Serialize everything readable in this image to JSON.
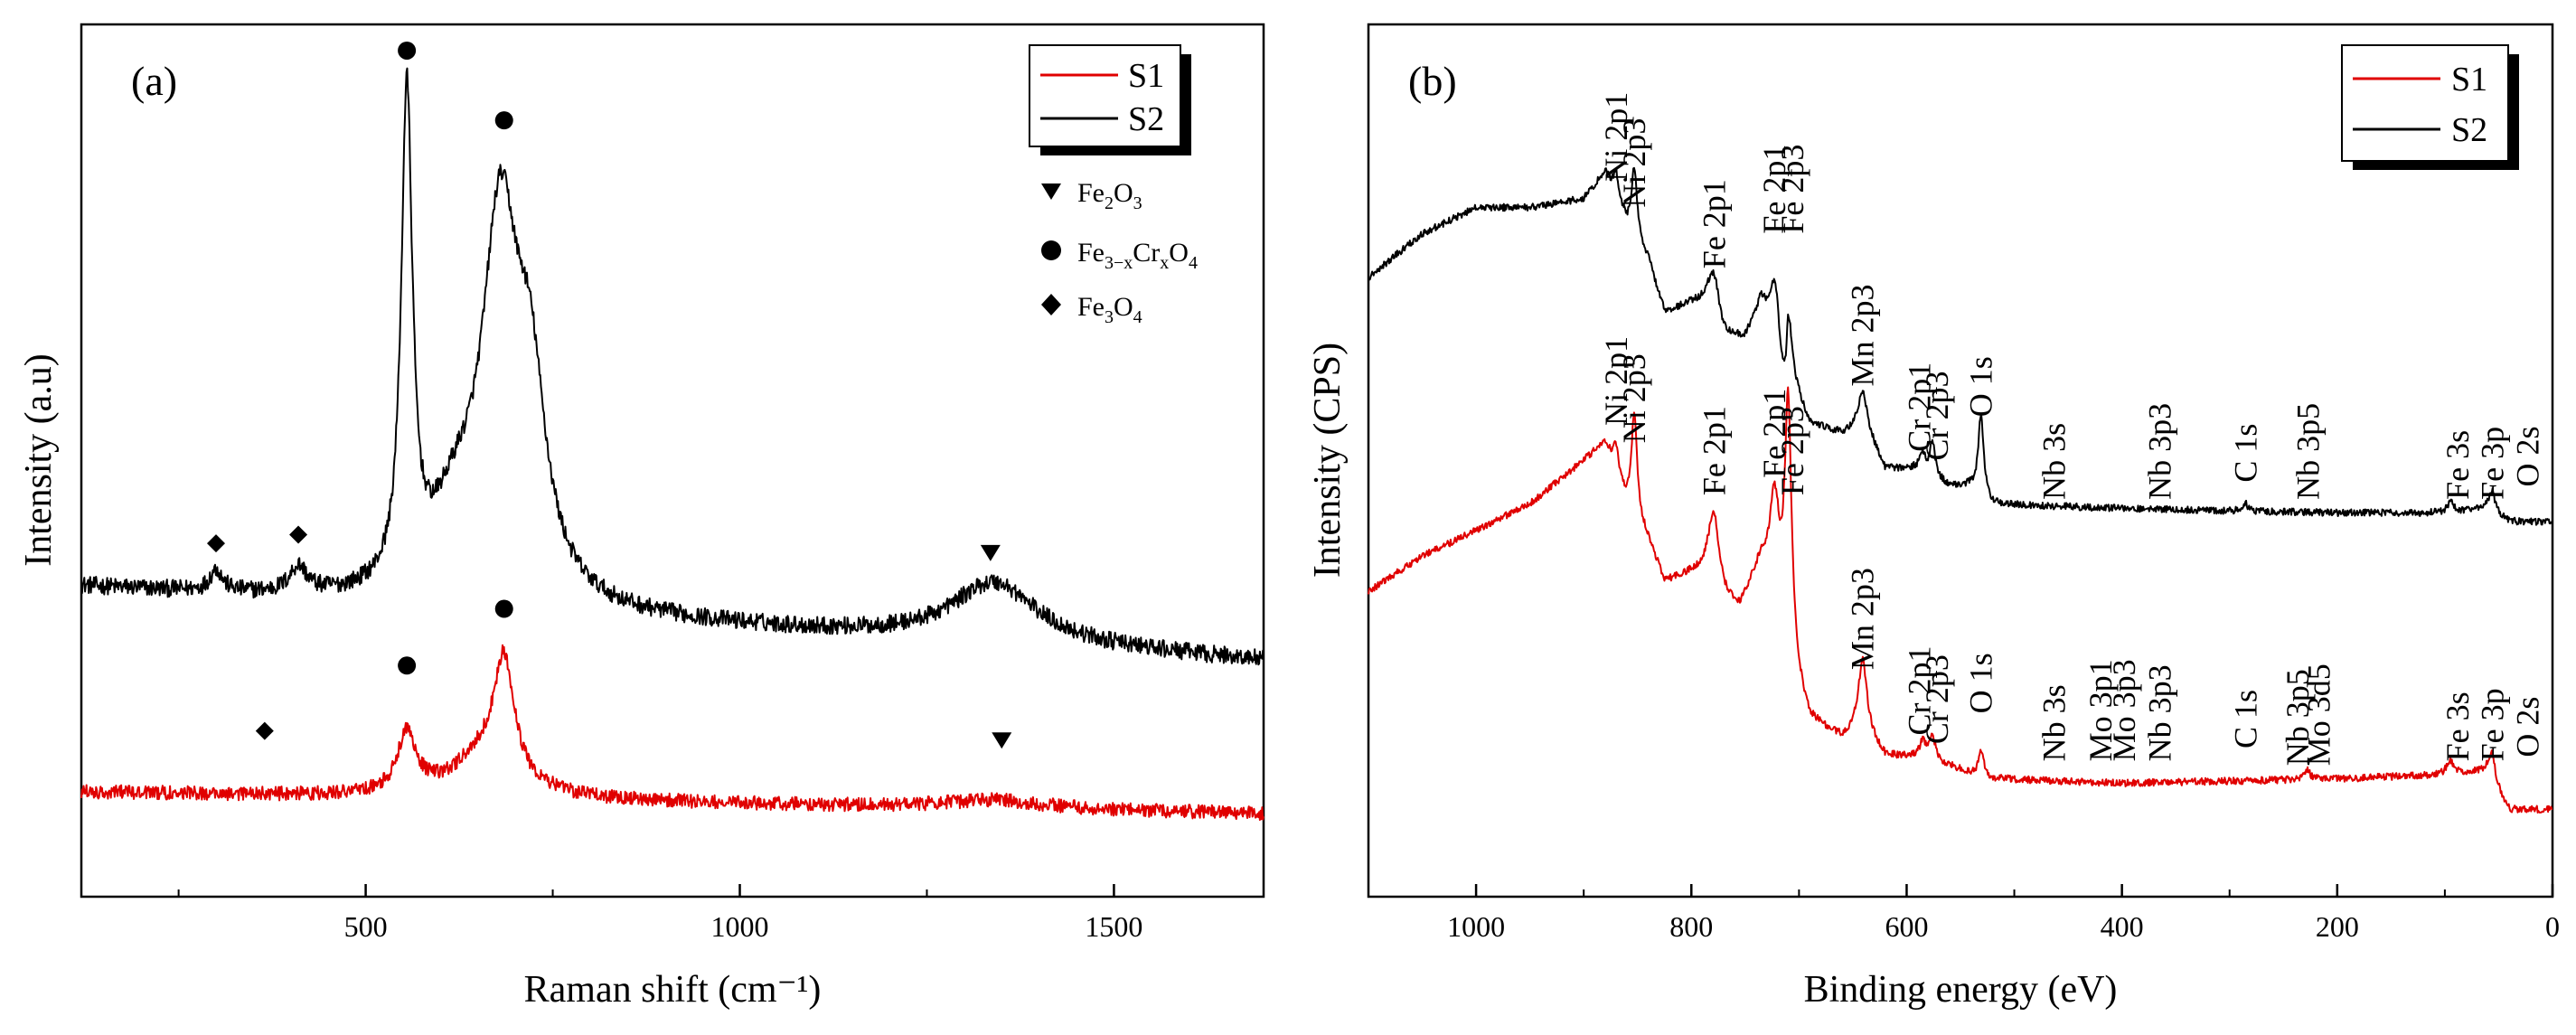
{
  "chart_data": [
    {
      "type": "line",
      "panel_label": "(a)",
      "xlabel": "Raman shift (cm⁻¹)",
      "ylabel": "Intensity (a.u)",
      "xlim": [
        120,
        1700
      ],
      "ylim": [
        0,
        1
      ],
      "xticks": [
        500,
        1000,
        1500
      ],
      "yticks": [],
      "grid": false,
      "legend": {
        "position": "top-right",
        "entries": [
          {
            "name": "S1",
            "color": "#e00000"
          },
          {
            "name": "S2",
            "color": "#000000"
          }
        ]
      },
      "marker_legend": [
        {
          "symbol": "triangle-down",
          "main": "Fe",
          "sub1": "2",
          "mid": "O",
          "sub2": "3",
          "tail": ""
        },
        {
          "symbol": "circle",
          "main": "Fe",
          "sub1": "3−x",
          "mid": "Cr",
          "sub2": "x",
          "tail": "O",
          "sub3": "4"
        },
        {
          "symbol": "diamond",
          "main": "Fe",
          "sub1": "3",
          "mid": "O",
          "sub2": "4",
          "tail": ""
        }
      ],
      "series": [
        {
          "name": "S2",
          "color": "#000000",
          "baseline_start": 0.355,
          "baseline_end": 0.27,
          "noise": 0.01,
          "peaks": [
            {
              "x": 300,
              "amp": 0.025,
              "w": 10
            },
            {
              "x": 410,
              "amp": 0.03,
              "w": 14
            },
            {
              "x": 555,
              "amp": 0.56,
              "w": 9
            },
            {
              "x": 620,
              "amp": 0.08,
              "w": 40
            },
            {
              "x": 680,
              "amp": 0.42,
              "w": 30
            },
            {
              "x": 720,
              "amp": 0.2,
              "w": 25
            },
            {
              "x": 1340,
              "amp": 0.07,
              "w": 70
            }
          ]
        },
        {
          "name": "S1",
          "color": "#e00000",
          "baseline_start": 0.12,
          "baseline_end": 0.095,
          "noise": 0.008,
          "peaks": [
            {
              "x": 555,
              "amp": 0.07,
              "w": 15
            },
            {
              "x": 660,
              "amp": 0.05,
              "w": 50
            },
            {
              "x": 685,
              "amp": 0.13,
              "w": 16
            },
            {
              "x": 1340,
              "amp": 0.01,
              "w": 80
            }
          ]
        }
      ],
      "markers": [
        {
          "symbol": "circle",
          "x": 555,
          "y": 0.97
        },
        {
          "symbol": "circle",
          "x": 685,
          "y": 0.89
        },
        {
          "symbol": "diamond",
          "x": 300,
          "y": 0.405
        },
        {
          "symbol": "diamond",
          "x": 410,
          "y": 0.415
        },
        {
          "symbol": "triangle-down",
          "x": 1335,
          "y": 0.395
        },
        {
          "symbol": "circle",
          "x": 555,
          "y": 0.265
        },
        {
          "symbol": "circle",
          "x": 685,
          "y": 0.33
        },
        {
          "symbol": "diamond",
          "x": 365,
          "y": 0.19
        },
        {
          "symbol": "triangle-down",
          "x": 1350,
          "y": 0.18
        }
      ]
    },
    {
      "type": "line",
      "panel_label": "(b)",
      "xlabel": "Binding energy (eV)",
      "ylabel": "Intensity (CPS)",
      "xlim": [
        1100,
        0
      ],
      "ylim": [
        0,
        1
      ],
      "xticks": [
        1000,
        800,
        600,
        400,
        200,
        0
      ],
      "yticks": [],
      "grid": false,
      "legend": {
        "position": "top-right",
        "entries": [
          {
            "name": "S1",
            "color": "#e00000"
          },
          {
            "name": "S2",
            "color": "#000000"
          }
        ]
      },
      "series": [
        {
          "name": "S2",
          "color": "#000000",
          "profile": [
            [
              1100,
              0.71
            ],
            [
              1050,
              0.76
            ],
            [
              1000,
              0.79
            ],
            [
              950,
              0.79
            ],
            [
              900,
              0.8
            ],
            [
              880,
              0.83
            ],
            [
              860,
              0.77
            ],
            [
              840,
              0.73
            ],
            [
              825,
              0.67
            ],
            [
              800,
              0.68
            ],
            [
              785,
              0.68
            ],
            [
              770,
              0.64
            ],
            [
              750,
              0.64
            ],
            [
              735,
              0.68
            ],
            [
              720,
              0.62
            ],
            [
              712,
              0.5
            ],
            [
              705,
              0.56
            ],
            [
              700,
              0.56
            ],
            [
              690,
              0.54
            ],
            [
              660,
              0.53
            ],
            [
              640,
              0.54
            ],
            [
              620,
              0.49
            ],
            [
              590,
              0.49
            ],
            [
              560,
              0.47
            ],
            [
              540,
              0.47
            ],
            [
              520,
              0.45
            ],
            [
              400,
              0.445
            ],
            [
              200,
              0.44
            ],
            [
              100,
              0.44
            ],
            [
              60,
              0.445
            ],
            [
              40,
              0.43
            ],
            [
              20,
              0.43
            ],
            [
              0,
              0.43
            ]
          ],
          "noise": 0.004,
          "peaks": [
            {
              "x": 870,
              "amp": 0.03,
              "w": 3
            },
            {
              "x": 853,
              "amp": 0.08,
              "w": 3
            },
            {
              "x": 779,
              "amp": 0.05,
              "w": 6
            },
            {
              "x": 723,
              "amp": 0.06,
              "w": 5
            },
            {
              "x": 710,
              "amp": 0.14,
              "w": 4
            },
            {
              "x": 641,
              "amp": 0.04,
              "w": 5
            },
            {
              "x": 585,
              "amp": 0.02,
              "w": 3
            },
            {
              "x": 576,
              "amp": 0.04,
              "w": 3
            },
            {
              "x": 531,
              "amp": 0.09,
              "w": 3
            },
            {
              "x": 285,
              "amp": 0.008,
              "w": 3
            },
            {
              "x": 95,
              "amp": 0.012,
              "w": 4
            },
            {
              "x": 56,
              "amp": 0.025,
              "w": 3
            }
          ]
        },
        {
          "name": "S1",
          "color": "#e00000",
          "profile": [
            [
              1100,
              0.35
            ],
            [
              1050,
              0.39
            ],
            [
              1000,
              0.42
            ],
            [
              950,
              0.45
            ],
            [
              900,
              0.5
            ],
            [
              880,
              0.52
            ],
            [
              860,
              0.45
            ],
            [
              840,
              0.41
            ],
            [
              825,
              0.36
            ],
            [
              800,
              0.37
            ],
            [
              785,
              0.37
            ],
            [
              770,
              0.34
            ],
            [
              755,
              0.33
            ],
            [
              735,
              0.38
            ],
            [
              720,
              0.34
            ],
            [
              708,
              0.25
            ],
            [
              700,
              0.23
            ],
            [
              690,
              0.2
            ],
            [
              660,
              0.18
            ],
            [
              640,
              0.19
            ],
            [
              620,
              0.16
            ],
            [
              590,
              0.16
            ],
            [
              560,
              0.15
            ],
            [
              540,
              0.14
            ],
            [
              520,
              0.135
            ],
            [
              400,
              0.13
            ],
            [
              200,
              0.135
            ],
            [
              100,
              0.14
            ],
            [
              60,
              0.145
            ],
            [
              40,
              0.1
            ],
            [
              20,
              0.1
            ],
            [
              0,
              0.1
            ]
          ],
          "noise": 0.004,
          "peaks": [
            {
              "x": 870,
              "amp": 0.03,
              "w": 3
            },
            {
              "x": 853,
              "amp": 0.12,
              "w": 3
            },
            {
              "x": 779,
              "amp": 0.08,
              "w": 6
            },
            {
              "x": 723,
              "amp": 0.1,
              "w": 5
            },
            {
              "x": 710,
              "amp": 0.3,
              "w": 4
            },
            {
              "x": 641,
              "amp": 0.08,
              "w": 5
            },
            {
              "x": 585,
              "amp": 0.02,
              "w": 3
            },
            {
              "x": 576,
              "amp": 0.03,
              "w": 3
            },
            {
              "x": 531,
              "amp": 0.03,
              "w": 3
            },
            {
              "x": 228,
              "amp": 0.012,
              "w": 3
            },
            {
              "x": 95,
              "amp": 0.015,
              "w": 4
            },
            {
              "x": 56,
              "amp": 0.03,
              "w": 3
            }
          ]
        }
      ],
      "annotations": [
        {
          "text": "Ni 2p1",
          "x": 870,
          "y": 0.82
        },
        {
          "text": "Ni 2p3",
          "x": 853,
          "y": 0.79
        },
        {
          "text": "Fe 2p1",
          "x": 779,
          "y": 0.72
        },
        {
          "text": "Fe 2p1",
          "x": 723,
          "y": 0.76
        },
        {
          "text": "Fe 2p3",
          "x": 706,
          "y": 0.76
        },
        {
          "text": "Mn 2p3",
          "x": 641,
          "y": 0.585
        },
        {
          "text": "Cr 2p1",
          "x": 588,
          "y": 0.51
        },
        {
          "text": "Cr 2p3",
          "x": 572,
          "y": 0.5
        },
        {
          "text": "O 1s",
          "x": 531,
          "y": 0.55
        },
        {
          "text": "Nb 3s",
          "x": 463,
          "y": 0.455
        },
        {
          "text": "Nb 3p3",
          "x": 365,
          "y": 0.455
        },
        {
          "text": "C 1s",
          "x": 285,
          "y": 0.475
        },
        {
          "text": "Nb 3p5",
          "x": 227,
          "y": 0.455
        },
        {
          "text": "Fe 3s",
          "x": 88,
          "y": 0.455
        },
        {
          "text": "Fe 3p",
          "x": 56,
          "y": 0.455
        },
        {
          "text": "O 2s",
          "x": 23,
          "y": 0.47
        },
        {
          "text": "Ni 2p1",
          "x": 870,
          "y": 0.54
        },
        {
          "text": "Ni 2p3",
          "x": 853,
          "y": 0.52
        },
        {
          "text": "Fe 2p1",
          "x": 779,
          "y": 0.46
        },
        {
          "text": "Fe 2p1",
          "x": 723,
          "y": 0.48
        },
        {
          "text": "Fe 2p3",
          "x": 706,
          "y": 0.46
        },
        {
          "text": "Mn 2p3",
          "x": 641,
          "y": 0.26
        },
        {
          "text": "Cr 2p1",
          "x": 588,
          "y": 0.185
        },
        {
          "text": "Cr 2p3",
          "x": 572,
          "y": 0.175
        },
        {
          "text": "O 1s",
          "x": 531,
          "y": 0.21
        },
        {
          "text": "Nb 3s",
          "x": 463,
          "y": 0.155
        },
        {
          "text": "Mo 3p1",
          "x": 420,
          "y": 0.155
        },
        {
          "text": "Mo 3p3",
          "x": 398,
          "y": 0.155
        },
        {
          "text": "Nb 3p3",
          "x": 365,
          "y": 0.155
        },
        {
          "text": "C 1s",
          "x": 285,
          "y": 0.17
        },
        {
          "text": "Nb 3p5",
          "x": 237,
          "y": 0.15
        },
        {
          "text": "Mo 3d5",
          "x": 217,
          "y": 0.15
        },
        {
          "text": "Fe 3s",
          "x": 88,
          "y": 0.155
        },
        {
          "text": "Fe 3p",
          "x": 56,
          "y": 0.155
        },
        {
          "text": "O 2s",
          "x": 23,
          "y": 0.16
        }
      ]
    }
  ]
}
